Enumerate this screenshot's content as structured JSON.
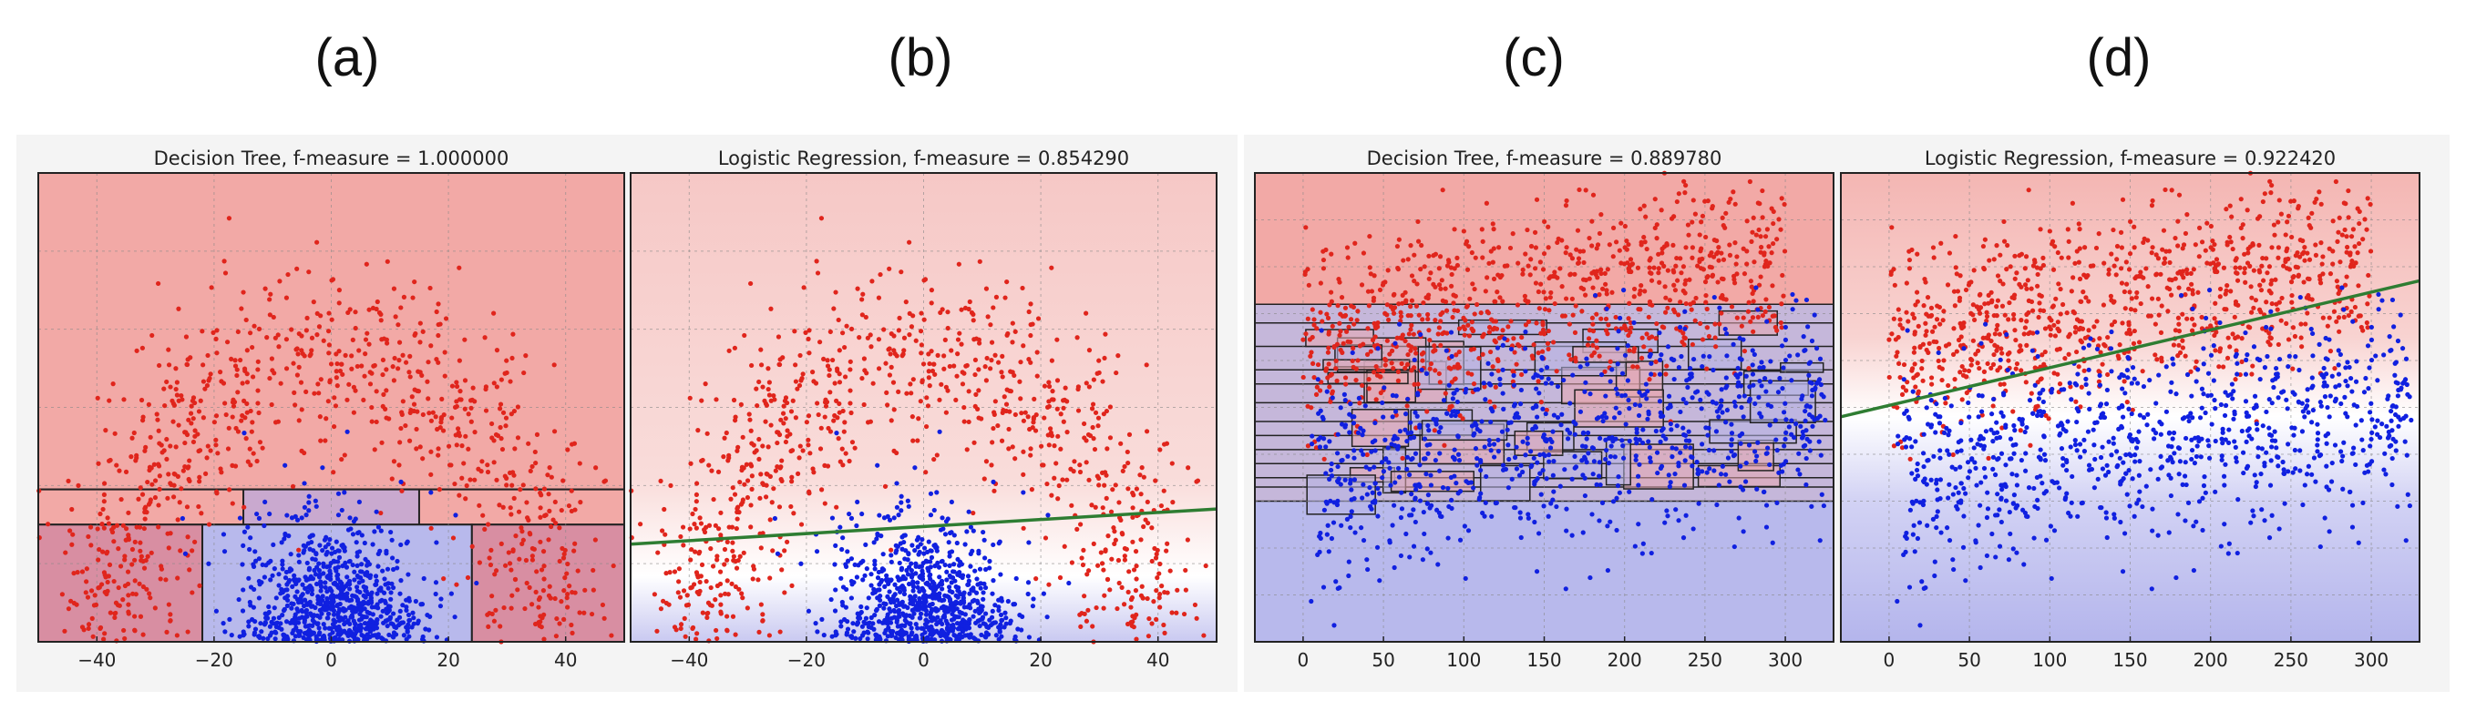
{
  "figure_labels": [
    "(a)",
    "(b)",
    "(c)",
    "(d)"
  ],
  "colors": {
    "red_points": "#e0251c",
    "blue_points": "#1020e0",
    "red_region": "#f2a9a6",
    "blue_region": "#b8b9ec",
    "boundary_line": "#2e7d32"
  },
  "chart_data": [
    {
      "type": "scatter",
      "title": "Decision Tree, f-measure = 1.000000",
      "dataset": "semicircle",
      "xlim": [
        -50,
        50
      ],
      "ylim": [
        0,
        60
      ],
      "xticks": [
        -40,
        -20,
        0,
        20,
        40
      ],
      "grid": true,
      "series": [
        {
          "class": "red",
          "shape": "semicircle arc",
          "approx_points": 900
        },
        {
          "class": "blue",
          "shape": "gaussian blob at bottom center",
          "approx_points": 800
        }
      ],
      "regions": [
        {
          "class": "red",
          "x": [
            -50,
            50
          ],
          "y": [
            19.5,
            60
          ]
        },
        {
          "class": "red",
          "x": [
            -50,
            50
          ],
          "y": [
            15,
            19.5
          ]
        },
        {
          "class": "blue",
          "x": [
            -15,
            15
          ],
          "y": [
            15,
            19.5
          ]
        },
        {
          "class": "red",
          "x": [
            -50,
            -22
          ],
          "y": [
            0,
            15
          ]
        },
        {
          "class": "blue",
          "x": [
            -22,
            24
          ],
          "y": [
            0,
            15
          ]
        },
        {
          "class": "red",
          "x": [
            24,
            50
          ],
          "y": [
            0,
            15
          ]
        }
      ]
    },
    {
      "type": "scatter",
      "title": "Logistic Regression, f-measure = 0.854290",
      "dataset": "semicircle",
      "xlim": [
        -50,
        50
      ],
      "ylim": [
        0,
        60
      ],
      "xticks": [
        -40,
        -20,
        0,
        20,
        40
      ],
      "grid": true,
      "series": [
        {
          "class": "red",
          "shape": "semicircle arc",
          "approx_points": 900
        },
        {
          "class": "blue",
          "shape": "gaussian blob at bottom center",
          "approx_points": 800
        }
      ],
      "decision_boundary": {
        "x": [
          -50,
          50
        ],
        "y": [
          12.5,
          17.0
        ]
      }
    },
    {
      "type": "scatter",
      "title": "Decision Tree, f-measure = 0.889780",
      "dataset": "two bands",
      "xlim": [
        -30,
        330
      ],
      "ylim": [
        0,
        100
      ],
      "xticks": [
        0,
        50,
        100,
        150,
        200,
        250,
        300
      ],
      "grid": true,
      "series": [
        {
          "class": "red",
          "shape": "upper band",
          "approx_points": 900
        },
        {
          "class": "blue",
          "shape": "lower band",
          "approx_points": 900
        }
      ],
      "regions": [
        {
          "class": "red",
          "x": [
            -30,
            330
          ],
          "y": [
            72,
            100
          ]
        },
        {
          "class": "blue",
          "x": [
            -30,
            330
          ],
          "y": [
            0,
            30
          ]
        }
      ]
    },
    {
      "type": "scatter",
      "title": "Logistic Regression, f-measure = 0.922420",
      "dataset": "two bands",
      "xlim": [
        -30,
        330
      ],
      "ylim": [
        0,
        100
      ],
      "xticks": [
        0,
        50,
        100,
        150,
        200,
        250,
        300
      ],
      "grid": true,
      "series": [
        {
          "class": "red",
          "shape": "upper band",
          "approx_points": 900
        },
        {
          "class": "blue",
          "shape": "lower band",
          "approx_points": 900
        }
      ],
      "decision_boundary": {
        "x": [
          -30,
          330
        ],
        "y": [
          48,
          77
        ]
      }
    }
  ]
}
